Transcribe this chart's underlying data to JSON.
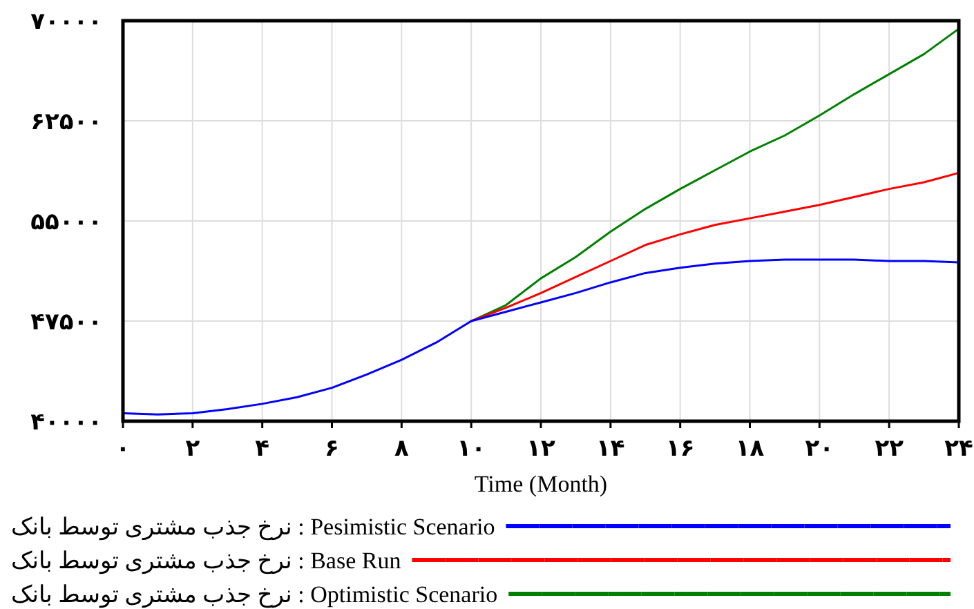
{
  "chart_data": {
    "type": "line",
    "xlabel": "Time (Month)",
    "x": [
      0,
      1,
      2,
      3,
      4,
      5,
      6,
      7,
      8,
      9,
      10,
      11,
      12,
      13,
      14,
      15,
      16,
      17,
      18,
      19,
      20,
      21,
      22,
      23,
      24
    ],
    "xlim": [
      0,
      24
    ],
    "xticks": [
      {
        "value": 0,
        "label": "۰"
      },
      {
        "value": 2,
        "label": "۲"
      },
      {
        "value": 4,
        "label": "۴"
      },
      {
        "value": 6,
        "label": "۶"
      },
      {
        "value": 8,
        "label": "۸"
      },
      {
        "value": 10,
        "label": "۱۰"
      },
      {
        "value": 12,
        "label": "۱۲"
      },
      {
        "value": 14,
        "label": "۱۴"
      },
      {
        "value": 16,
        "label": "۱۶"
      },
      {
        "value": 18,
        "label": "۱۸"
      },
      {
        "value": 20,
        "label": "۲۰"
      },
      {
        "value": 22,
        "label": "۲۲"
      },
      {
        "value": 24,
        "label": "۲۴"
      }
    ],
    "ylim": [
      40000,
      70000
    ],
    "yticks": [
      {
        "value": 40000,
        "label": "۴۰۰۰۰"
      },
      {
        "value": 47500,
        "label": "۴۷۵۰۰"
      },
      {
        "value": 55000,
        "label": "۵۵۰۰۰"
      },
      {
        "value": 62500,
        "label": "۶۲۵۰۰"
      },
      {
        "value": 70000,
        "label": "۷۰۰۰۰"
      }
    ],
    "grid": true,
    "legend": "bottom",
    "series": [
      {
        "name": "نرخ جذب مشتری توسط بانک : Pesimistic Scenario",
        "color": "#0000ff",
        "values": [
          40600,
          40500,
          40600,
          40900,
          41300,
          41800,
          42500,
          43500,
          44600,
          45900,
          47500,
          48200,
          48900,
          49600,
          50400,
          51100,
          51500,
          51800,
          52000,
          52100,
          52100,
          52100,
          52000,
          52000,
          51900
        ]
      },
      {
        "name": "نرخ جذب مشتری توسط بانک : Base Run",
        "color": "#ff0000",
        "values": [
          null,
          null,
          null,
          null,
          null,
          null,
          null,
          null,
          null,
          null,
          47500,
          48500,
          49600,
          50800,
          52000,
          53200,
          54000,
          54700,
          55200,
          55700,
          56200,
          56800,
          57400,
          57900,
          58600
        ]
      },
      {
        "name": "نرخ جذب مشتری توسط بانک : Optimistic Scenario",
        "color": "#008000",
        "values": [
          null,
          null,
          null,
          null,
          null,
          null,
          null,
          null,
          null,
          null,
          47500,
          48700,
          50700,
          52300,
          54200,
          55900,
          57400,
          58800,
          60200,
          61400,
          62900,
          64500,
          66000,
          67500,
          69400
        ]
      }
    ]
  }
}
